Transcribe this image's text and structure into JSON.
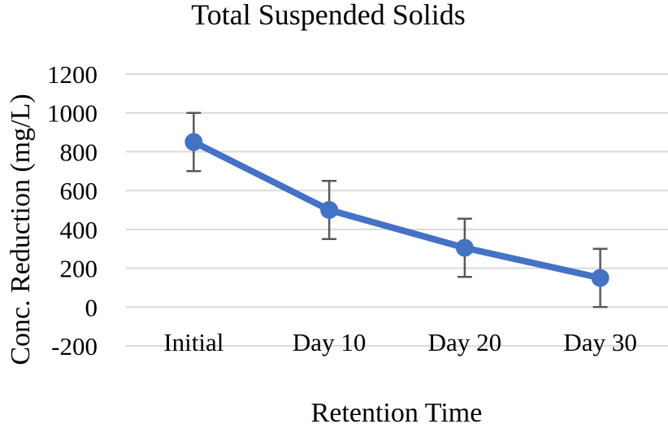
{
  "chart_data": {
    "type": "line",
    "title": "Total Suspended Solids",
    "xlabel": "Retention Time",
    "ylabel": "Conc. Reduction (mg/L)",
    "categories": [
      "Initial",
      "Day 10",
      "Day 20",
      "Day 30"
    ],
    "series": [
      {
        "values": [
          850,
          500,
          305,
          150
        ],
        "error": [
          150,
          150,
          150,
          150
        ],
        "color": "#4472C4"
      }
    ],
    "ylim": [
      -200,
      1200
    ],
    "yticks": [
      -200,
      0,
      200,
      400,
      600,
      800,
      1000,
      1200
    ],
    "ytick_labels": [
      "-200",
      "0",
      "200",
      "400",
      "600",
      "800",
      "1000",
      "1200"
    ],
    "grid": true,
    "legend": "none",
    "colors": {
      "line": "#4472C4",
      "grid": "#D9D9D9",
      "error_bar": "#595959"
    }
  }
}
